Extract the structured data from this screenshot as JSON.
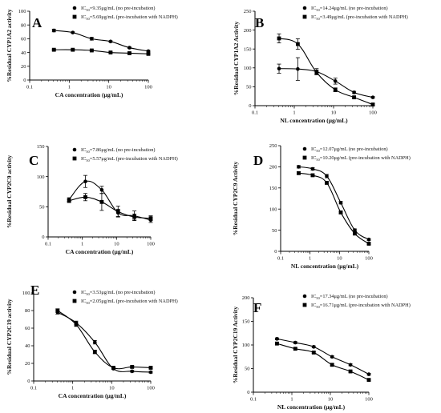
{
  "chart_data": [
    {
      "panel": "A",
      "type": "line",
      "xscale": "log",
      "xlim": [
        0.1,
        100
      ],
      "ylim": [
        0,
        100
      ],
      "xticks": [
        "0.1",
        "1",
        "10",
        "100"
      ],
      "yticks": [
        "0",
        "20",
        "40",
        "60",
        "80",
        "100"
      ],
      "xlabel": "CA concentration (μg/mL)",
      "ylabel": "%Residual CYP1A2 activity",
      "series": [
        {
          "name": "IC50=9.35μg/mL (no pre-incubation)",
          "marker": "circle",
          "x": [
            0.41,
            1.23,
            3.7,
            11.1,
            33.3,
            100
          ],
          "y": [
            72,
            69,
            60,
            56,
            47,
            42
          ],
          "err": [
            2,
            1,
            2,
            1,
            1,
            1
          ]
        },
        {
          "name": "IC50=5.69μg/mL (pre-incubation with NADPH)",
          "marker": "square",
          "x": [
            0.41,
            1.23,
            3.7,
            11.1,
            33.3,
            100
          ],
          "y": [
            44,
            44,
            43,
            40,
            39,
            38
          ],
          "err": [
            1,
            1,
            1,
            1,
            1,
            1
          ]
        }
      ]
    },
    {
      "panel": "B",
      "type": "line",
      "xscale": "log",
      "xlim": [
        0.1,
        100
      ],
      "ylim": [
        0,
        250
      ],
      "xticks": [
        "0.1",
        "1",
        "10",
        "100"
      ],
      "yticks": [
        "0",
        "50",
        "100",
        "150",
        "200",
        "250"
      ],
      "xlabel": "NL concentration (μg/mL)",
      "ylabel": "%Residual CYP1A2 Activity",
      "series": [
        {
          "name": "IC50=14.24μg/mL (no pre-incubation)",
          "marker": "circle",
          "x": [
            0.41,
            1.23,
            3.7,
            11.1,
            33.3,
            100
          ],
          "y": [
            98,
            97,
            90,
            65,
            35,
            22
          ],
          "err": [
            12,
            30,
            8,
            8,
            3,
            2
          ]
        },
        {
          "name": "IC50=3.49μg/mL (pre-incubation with NADPH)",
          "marker": "square",
          "x": [
            0.41,
            1.23,
            3.7,
            11.1,
            33.3,
            100
          ],
          "y": [
            178,
            163,
            88,
            42,
            22,
            3
          ],
          "err": [
            12,
            14,
            6,
            5,
            2,
            2
          ]
        }
      ]
    },
    {
      "panel": "C",
      "type": "line",
      "xscale": "log",
      "xlim": [
        0.1,
        100
      ],
      "ylim": [
        0,
        150
      ],
      "xticks": [
        "0.1",
        "1",
        "10",
        "100"
      ],
      "yticks": [
        "0",
        "50",
        "100",
        "150"
      ],
      "xlabel": "CA concentration (μg/mL)",
      "ylabel": "%Residual CYP2C9 activity",
      "series": [
        {
          "name": "IC50=7.86μg/mL (no pre-incubation)",
          "marker": "circle",
          "x": [
            0.41,
            1.23,
            3.7,
            11.1,
            33.3,
            100
          ],
          "y": [
            62,
            92,
            78,
            40,
            35,
            28
          ],
          "err": [
            3,
            10,
            6,
            6,
            8,
            4
          ]
        },
        {
          "name": "IC50=5.57μg/mL (pre-incubation with NADPH)",
          "marker": "square",
          "x": [
            0.41,
            1.23,
            3.7,
            11.1,
            33.3,
            100
          ],
          "y": [
            60,
            66,
            58,
            42,
            33,
            31
          ],
          "err": [
            3,
            6,
            14,
            9,
            5,
            4
          ]
        }
      ]
    },
    {
      "panel": "D",
      "type": "line",
      "xscale": "log",
      "xlim": [
        0.1,
        100
      ],
      "ylim": [
        0,
        250
      ],
      "xticks": [
        "0.1",
        "1",
        "10",
        "100"
      ],
      "yticks": [
        "0",
        "50",
        "100",
        "150",
        "200",
        "250"
      ],
      "xlabel": "NL concentration (μg/mL)",
      "ylabel": "%Residual CYP2C9 Activity",
      "series": [
        {
          "name": "IC50=12.07μg/mL (no pre-incubation)",
          "marker": "circle",
          "x": [
            0.41,
            1.23,
            3.7,
            11.1,
            33.3,
            100
          ],
          "y": [
            200,
            195,
            178,
            115,
            50,
            28
          ],
          "err": [
            3,
            3,
            4,
            3,
            3,
            2
          ]
        },
        {
          "name": "IC50=10.20μg/mL (pre-incubation with NADPH)",
          "marker": "square",
          "x": [
            0.41,
            1.23,
            3.7,
            11.1,
            33.3,
            100
          ],
          "y": [
            185,
            180,
            162,
            92,
            42,
            18
          ],
          "err": [
            3,
            3,
            3,
            3,
            3,
            2
          ]
        }
      ]
    },
    {
      "panel": "E",
      "type": "line",
      "xscale": "log",
      "xlim": [
        0.1,
        100
      ],
      "ylim": [
        0,
        100
      ],
      "xticks": [
        "0.1",
        "1",
        "10",
        "100"
      ],
      "yticks": [
        "0",
        "20",
        "40",
        "60",
        "80",
        "100"
      ],
      "xlabel": "CA concentration (μg/mL)",
      "ylabel": "%Residual CYP2C19 activity",
      "series": [
        {
          "name": "IC50=3.53μg/mL (no pre-incubation)",
          "marker": "circle",
          "x": [
            0.41,
            1.23,
            3.7,
            11.1,
            33.3,
            100
          ],
          "y": [
            78,
            66,
            44,
            14,
            11,
            10
          ],
          "err": [
            2,
            2,
            2,
            1,
            1,
            1
          ]
        },
        {
          "name": "IC50=2.05μg/mL (pre-incubation with NADPH)",
          "marker": "square",
          "x": [
            0.41,
            1.23,
            3.7,
            11.1,
            33.3,
            100
          ],
          "y": [
            80,
            64,
            33,
            15,
            16,
            15
          ],
          "err": [
            2,
            2,
            2,
            1,
            1,
            1
          ]
        }
      ]
    },
    {
      "panel": "F",
      "type": "line",
      "xscale": "log",
      "xlim": [
        0.1,
        100
      ],
      "ylim": [
        0,
        200
      ],
      "xticks": [
        "0.1",
        "1",
        "10",
        "100"
      ],
      "yticks": [
        "0",
        "50",
        "100",
        "150",
        "200"
      ],
      "xlabel": "NL concentration (μg/mL)",
      "ylabel": "%Residual CYP2C19 Activity",
      "series": [
        {
          "name": "IC50=17.34μg/mL (no pre-incubation)",
          "marker": "circle",
          "x": [
            0.41,
            1.23,
            3.7,
            11.1,
            33.3,
            100
          ],
          "y": [
            113,
            105,
            96,
            75,
            58,
            38
          ],
          "err": [
            2,
            2,
            2,
            2,
            2,
            2
          ]
        },
        {
          "name": "IC50=16.71μg/mL (pre-incubation with NADPH)",
          "marker": "square",
          "x": [
            0.41,
            1.23,
            3.7,
            11.1,
            33.3,
            100
          ],
          "y": [
            103,
            92,
            84,
            58,
            44,
            26
          ],
          "err": [
            2,
            2,
            2,
            2,
            2,
            2
          ]
        }
      ]
    }
  ]
}
